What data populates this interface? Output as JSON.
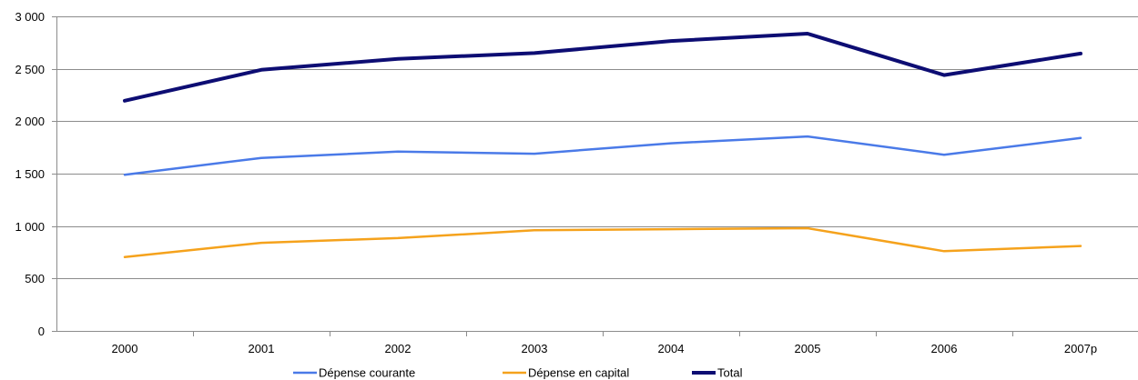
{
  "chart_data": {
    "type": "line",
    "categories": [
      "2000",
      "2001",
      "2002",
      "2003",
      "2004",
      "2005",
      "2006",
      "2007p"
    ],
    "series": [
      {
        "name": "Dépense courante",
        "color": "#4a7ae8",
        "values": [
          1490,
          1650,
          1710,
          1690,
          1790,
          1855,
          1680,
          1840
        ]
      },
      {
        "name": "Dépense en capital",
        "color": "#f5a21c",
        "values": [
          705,
          840,
          885,
          960,
          970,
          980,
          760,
          810
        ]
      },
      {
        "name": "Total",
        "color": "#0d0d73",
        "values": [
          2195,
          2490,
          2595,
          2650,
          2765,
          2835,
          2440,
          2645
        ]
      }
    ],
    "ylim": [
      0,
      3000
    ],
    "yticks": [
      0,
      500,
      1000,
      1500,
      2000,
      2500,
      3000
    ],
    "ytick_labels": [
      "0",
      "500",
      "1 000",
      "1 500",
      "2 000",
      "2 500",
      "3 000"
    ],
    "grid": "horizontal",
    "legend_position": "bottom",
    "title": "",
    "xlabel": "",
    "ylabel": ""
  }
}
